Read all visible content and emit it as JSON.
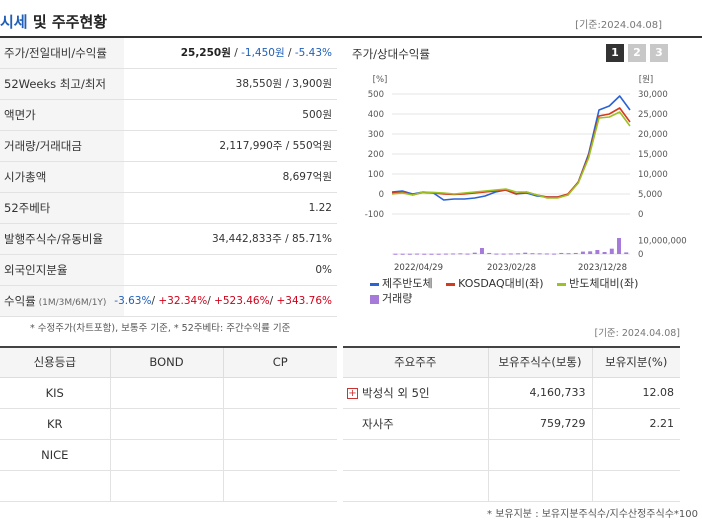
{
  "header": {
    "title_part1": "시세",
    "title_part2": " 및 주주현황",
    "date": "[기준:2024.04.08]"
  },
  "info_rows": [
    {
      "label": "주가/전일대비/수익률",
      "price": "25,250원",
      "sep1": " / ",
      "change": "-1,450원",
      "sep2": " / ",
      "rate": "-5.43%"
    },
    {
      "label": "52Weeks 최고/최저",
      "value": "38,550원 / 3,900원"
    },
    {
      "label": "액면가",
      "value": "500원"
    },
    {
      "label": "거래량/거래대금",
      "value": "2,117,990주 / 550억원"
    },
    {
      "label": "시가총액",
      "value": "8,697억원"
    },
    {
      "label": "52주베타",
      "value": "1.22"
    },
    {
      "label": "발행주식수/유동비율",
      "value": "34,442,833주 / 85.71%"
    },
    {
      "label": "외국인지분율",
      "value": "0%"
    },
    {
      "label": "수익률",
      "label_sub": " (1M/3M/6M/1Y)",
      "r1": "-3.63%",
      "r2": "+32.34%",
      "r3": "+523.46%",
      "r4": "+343.76%",
      "slash": "/ "
    }
  ],
  "footnote1": "* 수정주가(차트포함), 보통주 기준, * 52주베타: 주간수익률 기준",
  "chart_box": {
    "title": "주가/상대수익률",
    "tabs": [
      "1",
      "2",
      "3"
    ],
    "active_tab": "1"
  },
  "chart_data": {
    "type": "line",
    "x_ticks": [
      "2022/04/29",
      "2023/02/28",
      "2023/12/28"
    ],
    "y_left_unit": "[%]",
    "y_left_ticks": [
      500,
      400,
      300,
      200,
      100,
      0,
      -100
    ],
    "y_left_range": [
      -100,
      500
    ],
    "y_right_unit": "[원]",
    "y_right_ticks": [
      "30,000",
      "25,000",
      "20,000",
      "15,000",
      "10,000",
      "5,000",
      "0"
    ],
    "y_right_range": [
      0,
      30000
    ],
    "volume_ticks": [
      "10,000,000",
      "0"
    ],
    "volume_range": [
      0,
      15000000
    ],
    "series": [
      {
        "name": "제주반도체",
        "color": "#2b62d6",
        "values": [
          10,
          15,
          0,
          10,
          5,
          -30,
          -25,
          -25,
          -20,
          -10,
          10,
          20,
          0,
          5,
          -10,
          -15,
          -15,
          -5,
          60,
          200,
          420,
          440,
          490,
          420
        ]
      },
      {
        "name": "KOSDAQ대비(좌)",
        "color": "#d33b1f",
        "values": [
          5,
          10,
          -5,
          8,
          5,
          0,
          -2,
          0,
          5,
          10,
          15,
          20,
          0,
          10,
          -5,
          -15,
          -15,
          0,
          60,
          190,
          390,
          400,
          430,
          360
        ]
      },
      {
        "name": "반도체대비(좌)",
        "color": "#9ac224",
        "values": [
          0,
          5,
          -5,
          10,
          8,
          5,
          0,
          5,
          10,
          15,
          20,
          25,
          10,
          10,
          -5,
          -20,
          -20,
          -5,
          55,
          180,
          380,
          385,
          410,
          340
        ]
      }
    ],
    "volume": {
      "name": "거래량",
      "color": "#a57ad8",
      "values": [
        0.2,
        0.2,
        0.2,
        0.3,
        0.2,
        0.2,
        0.2,
        0.3,
        0.4,
        0.5,
        0.3,
        1.0,
        4.5,
        0.8,
        0.3,
        0.3,
        0.4,
        0.5,
        1.0,
        0.6,
        0.5,
        0.4,
        0.3,
        0.8,
        0.6,
        0.8,
        1.8,
        2.0,
        3.0,
        1.5,
        4.0,
        12.0,
        1.2
      ]
    }
  },
  "footnote2": "[기준: 2024.04.08]",
  "credit": {
    "headers": [
      "신용등급",
      "BOND",
      "CP"
    ],
    "rows": [
      [
        "KIS",
        "",
        ""
      ],
      [
        "KR",
        "",
        ""
      ],
      [
        "NICE",
        "",
        ""
      ],
      [
        "",
        "",
        ""
      ]
    ]
  },
  "holders": {
    "headers": [
      "주요주주",
      "보유주식수(보통)",
      "보유지분(%)"
    ],
    "rows": [
      {
        "name": "박성식 외 5인",
        "shares": "4,160,733",
        "pct": "12.08",
        "expand": "+"
      },
      {
        "name": "자사주",
        "shares": "759,729",
        "pct": "2.21",
        "expand": ""
      },
      {
        "name": "",
        "shares": "",
        "pct": "",
        "expand": ""
      },
      {
        "name": "",
        "shares": "",
        "pct": "",
        "expand": ""
      }
    ]
  },
  "footnote3": "* 보유지분 : 보유지분주식수/지수산정주식수*100"
}
